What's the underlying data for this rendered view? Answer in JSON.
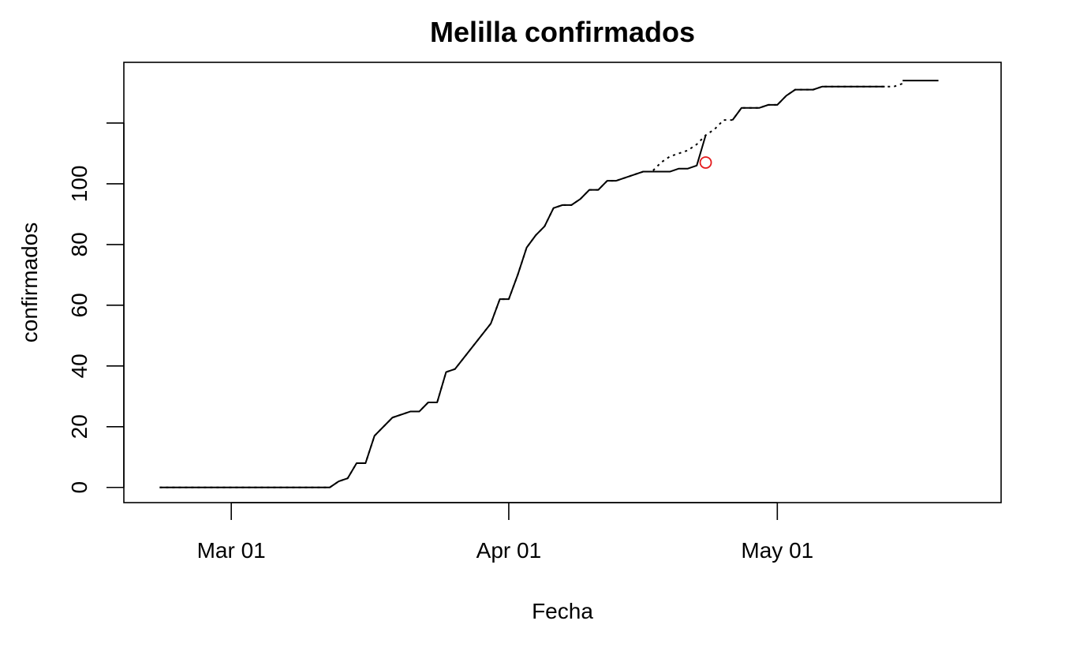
{
  "chart_data": {
    "type": "line",
    "title": "Melilla confirmados",
    "xlabel": "Fecha",
    "ylabel": "confirmados",
    "x_ticks": [
      {
        "date": "2020-03-01",
        "label": "Mar 01"
      },
      {
        "date": "2020-04-01",
        "label": "Apr 01"
      },
      {
        "date": "2020-05-01",
        "label": "May 01"
      }
    ],
    "y_ticks": [
      0,
      20,
      40,
      60,
      80,
      100
    ],
    "xlim": [
      "2020-02-18",
      "2020-05-26"
    ],
    "ylim": [
      -5,
      140
    ],
    "grid": false,
    "legend": "none",
    "series": [
      {
        "style": "solid",
        "color": "#000000",
        "points": [
          [
            "2020-02-22",
            0
          ],
          [
            "2020-03-12",
            0
          ],
          [
            "2020-03-13",
            2
          ],
          [
            "2020-03-14",
            3
          ],
          [
            "2020-03-15",
            8
          ],
          [
            "2020-03-16",
            8
          ],
          [
            "2020-03-17",
            17
          ],
          [
            "2020-03-19",
            23
          ],
          [
            "2020-03-21",
            25
          ],
          [
            "2020-03-22",
            25
          ],
          [
            "2020-03-23",
            28
          ],
          [
            "2020-03-24",
            28
          ],
          [
            "2020-03-25",
            38
          ],
          [
            "2020-03-26",
            39
          ],
          [
            "2020-03-30",
            54
          ],
          [
            "2020-03-31",
            62
          ],
          [
            "2020-04-01",
            62
          ],
          [
            "2020-04-02",
            70
          ],
          [
            "2020-04-03",
            79
          ],
          [
            "2020-04-04",
            83
          ],
          [
            "2020-04-05",
            86
          ],
          [
            "2020-04-06",
            92
          ],
          [
            "2020-04-07",
            93
          ],
          [
            "2020-04-08",
            93
          ],
          [
            "2020-04-09",
            95
          ],
          [
            "2020-04-10",
            98
          ],
          [
            "2020-04-11",
            98
          ],
          [
            "2020-04-12",
            101
          ],
          [
            "2020-04-13",
            101
          ],
          [
            "2020-04-16",
            104
          ],
          [
            "2020-04-19",
            104
          ],
          [
            "2020-04-20",
            105
          ],
          [
            "2020-04-21",
            105
          ],
          [
            "2020-04-22",
            106
          ],
          [
            "2020-04-23",
            116
          ]
        ]
      },
      {
        "style": "dotted",
        "color": "#000000",
        "points": [
          [
            "2020-02-22",
            0
          ],
          [
            "2020-03-12",
            0
          ],
          [
            "2020-03-13",
            2
          ],
          [
            "2020-03-14",
            3
          ],
          [
            "2020-03-15",
            8
          ],
          [
            "2020-03-16",
            8
          ],
          [
            "2020-03-17",
            17
          ],
          [
            "2020-03-19",
            23
          ],
          [
            "2020-03-21",
            25
          ],
          [
            "2020-03-22",
            25
          ],
          [
            "2020-03-23",
            28
          ],
          [
            "2020-03-24",
            28
          ],
          [
            "2020-03-25",
            38
          ],
          [
            "2020-03-26",
            39
          ],
          [
            "2020-03-30",
            54
          ],
          [
            "2020-03-31",
            62
          ],
          [
            "2020-04-01",
            62
          ],
          [
            "2020-04-02",
            70
          ],
          [
            "2020-04-03",
            79
          ],
          [
            "2020-04-04",
            83
          ],
          [
            "2020-04-05",
            86
          ],
          [
            "2020-04-06",
            92
          ],
          [
            "2020-04-07",
            93
          ],
          [
            "2020-04-08",
            93
          ],
          [
            "2020-04-09",
            95
          ],
          [
            "2020-04-10",
            98
          ],
          [
            "2020-04-11",
            98
          ],
          [
            "2020-04-12",
            101
          ],
          [
            "2020-04-13",
            101
          ],
          [
            "2020-04-16",
            104
          ],
          [
            "2020-04-17",
            104
          ],
          [
            "2020-04-18",
            107
          ],
          [
            "2020-04-19",
            109
          ],
          [
            "2020-04-20",
            110
          ],
          [
            "2020-04-21",
            111
          ],
          [
            "2020-04-22",
            113
          ],
          [
            "2020-04-23",
            116
          ],
          [
            "2020-04-24",
            118
          ],
          [
            "2020-04-25",
            121
          ],
          [
            "2020-04-26",
            121
          ],
          [
            "2020-04-27",
            125
          ],
          [
            "2020-04-29",
            125
          ],
          [
            "2020-04-30",
            126
          ],
          [
            "2020-05-01",
            126
          ],
          [
            "2020-05-02",
            129
          ],
          [
            "2020-05-03",
            131
          ],
          [
            "2020-05-05",
            131
          ],
          [
            "2020-05-06",
            132
          ],
          [
            "2020-05-14",
            132
          ],
          [
            "2020-05-15",
            133
          ]
        ]
      },
      {
        "style": "solid",
        "color": "#000000",
        "points": [
          [
            "2020-04-26",
            121
          ],
          [
            "2020-04-27",
            125
          ],
          [
            "2020-04-29",
            125
          ],
          [
            "2020-04-30",
            126
          ],
          [
            "2020-05-01",
            126
          ],
          [
            "2020-05-02",
            129
          ],
          [
            "2020-05-03",
            131
          ],
          [
            "2020-05-05",
            131
          ],
          [
            "2020-05-06",
            132
          ],
          [
            "2020-05-13",
            132
          ]
        ]
      },
      {
        "style": "solid",
        "color": "#000000",
        "points": [
          [
            "2020-05-15",
            134
          ],
          [
            "2020-05-19",
            134
          ]
        ]
      }
    ],
    "highlight_points": [
      {
        "date": "2020-04-23",
        "value": 107,
        "shape": "open-circle",
        "color": "#e41a1c"
      }
    ]
  }
}
